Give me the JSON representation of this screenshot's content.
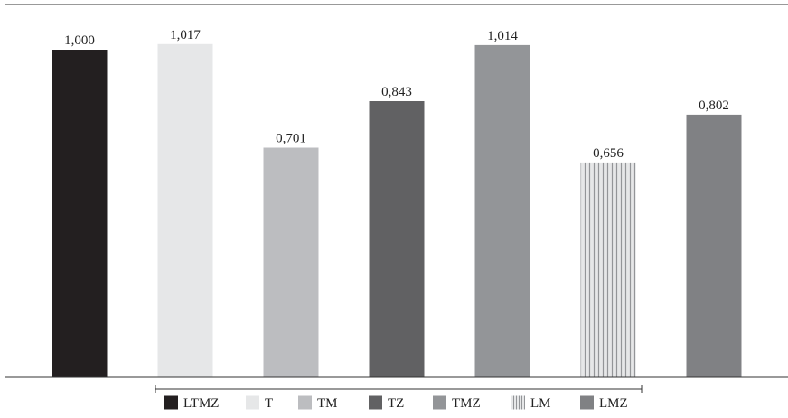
{
  "chart_data": {
    "type": "bar",
    "categories": [
      "LTMZ",
      "T",
      "TM",
      "TZ",
      "TMZ",
      "LM",
      "LMZ"
    ],
    "values": [
      1.0,
      1.017,
      0.701,
      0.843,
      1.014,
      0.656,
      0.802
    ],
    "value_labels": [
      "1,000",
      "1,017",
      "0,701",
      "0,843",
      "1,014",
      "0,656",
      "0,802"
    ],
    "colors": [
      "#231f20",
      "#e6e7e8",
      "#bcbdc0",
      "#616163",
      "#939598",
      "#d1d3d4",
      "#808184"
    ],
    "patterns": [
      "solid",
      "solid",
      "solid",
      "solid",
      "solid",
      "vertical-lines",
      "solid"
    ],
    "legend": [
      "LTMZ",
      "T",
      "TM",
      "TZ",
      "TMZ",
      "LM",
      "LMZ"
    ],
    "legend_position": "bottom",
    "title": "",
    "xlabel": "",
    "ylabel": "",
    "ylim": [
      0,
      1.1
    ],
    "grid": false
  }
}
